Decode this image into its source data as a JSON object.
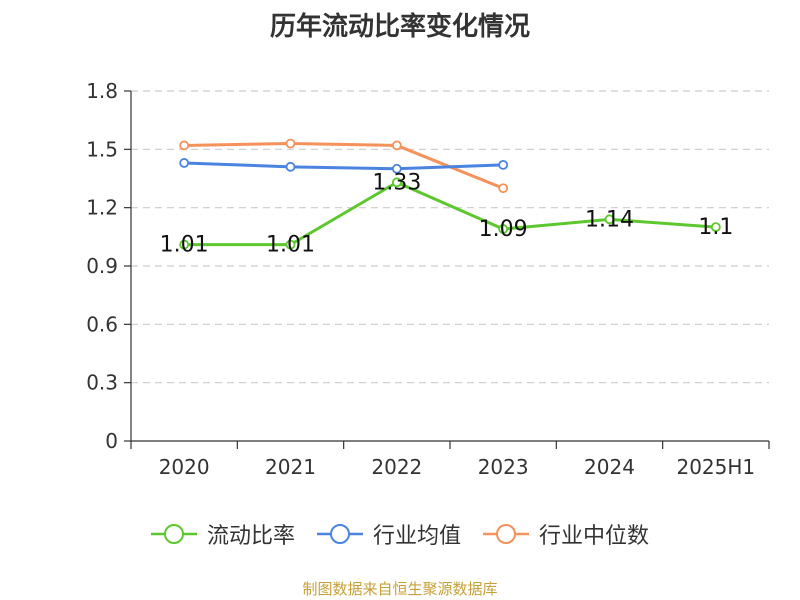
{
  "chart_data": {
    "type": "line",
    "title": "历年流动比率变化情况",
    "categories": [
      "2020",
      "2021",
      "2022",
      "2023",
      "2024",
      "2025H1"
    ],
    "ylim": [
      0,
      1.8
    ],
    "yticks": [
      "0",
      "0.3",
      "0.6",
      "0.9",
      "1.2",
      "1.5",
      "1.8"
    ],
    "grid": true,
    "legend_position": "bottom",
    "series": [
      {
        "name": "流动比率",
        "color": "#5dc72e",
        "values": [
          1.01,
          1.01,
          1.33,
          1.09,
          1.14,
          1.1
        ],
        "labels": [
          "1.01",
          "1.01",
          "1.33",
          "1.09",
          "1.14",
          "1.1"
        ]
      },
      {
        "name": "行业均值",
        "color": "#4b84e0",
        "values": [
          1.43,
          1.41,
          1.4,
          1.42,
          null,
          null
        ]
      },
      {
        "name": "行业中位数",
        "color": "#f5915a",
        "values": [
          1.52,
          1.53,
          1.52,
          1.3,
          null,
          null
        ]
      }
    ]
  },
  "source_text": "制图数据来自恒生聚源数据库",
  "source_color": "#c8a038"
}
